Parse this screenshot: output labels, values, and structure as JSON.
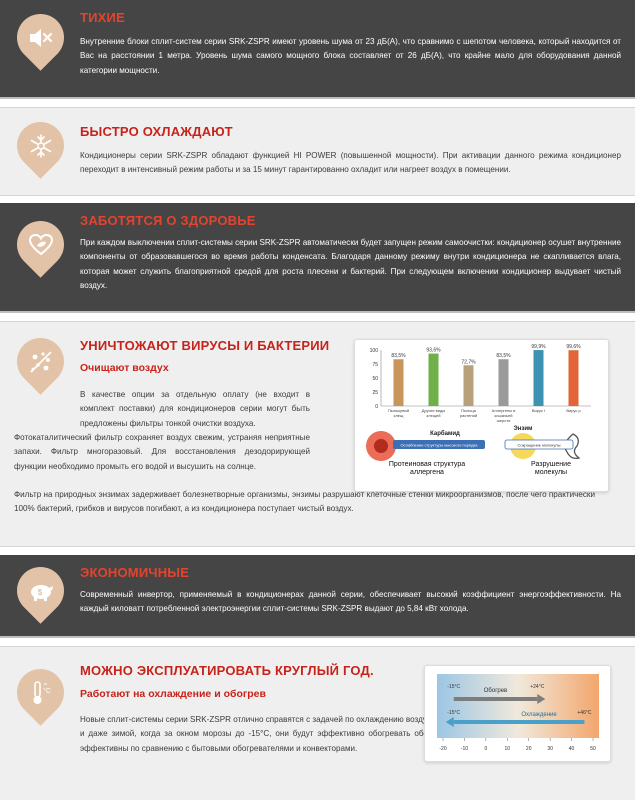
{
  "sections": [
    {
      "title": "ТИХИЕ",
      "icon": "mute-speaker-icon",
      "text": "Внутренние блоки сплит-систем серии SRK-ZSPR имеют уровень шума от 23 дБ(А), что сравнимо с шепотом человека, который находится от Вас на расстоянии 1 метра. Уровень шума самого мощного блока составляет от 26 дБ(А), что крайне мало для оборудования данной категории мощности."
    },
    {
      "title": "БЫСТРО ОХЛАЖДАЮТ",
      "icon": "snowflake-sun-icon",
      "text": "Кондиционеры серии SRK-ZSPR обладают функцией HI POWER (повышенной мощности). При активации данного режима кондиционер переходит в интенсивный режим работы и за 15 минут гарантированно охладит или нагреет воздух в помещении."
    },
    {
      "title": "ЗАБОТЯТСЯ О ЗДОРОВЬЕ",
      "icon": "heart-leaf-icon",
      "text": "При каждом выключении сплит-системы серии SRK-ZSPR автоматически будет запущен режим самоочистки: кондиционер осушет внутренние компоненты от образовавшегося во время работы конденсата. Благодаря данному режиму внутри кондиционера не скапливается влага, которая может служить благоприятной средой для роста плесени и бактерий. При следующем включении кондиционер выдувает чистый воздух."
    },
    {
      "title": "УНИЧТОЖАЮТ ВИРУСЫ И БАКТЕРИИ",
      "subtitle": "Очищают воздух",
      "icon": "virus-icon",
      "p1": "В качестве опции за отдельную оплату (не входит в комплект поставки) для кондиционеров серии могут быть предложены фильтры тонкой очистки воздуха.",
      "p2": "Фотокаталитический фильтр сохраняет воздух свежим, устраняя неприятные запахи. Фильтр многоразовый. Для восстановления дезодорирующей функции необходимо промыть его водой и высушить на солнце.",
      "p3": "Фильтр на природных энзимах задерживает болезнетворные организмы, энзимы разрушают клеточные стенки микроорганизмов, после чего практически 100% бактерий, грибков и вирусов погибают, а из кондиционера поступает чистый воздух."
    },
    {
      "title": "ЭКОНОМИЧНЫЕ",
      "icon": "piggy-bank-icon",
      "text": "Современный инвертор, применяемый в кондиционерах данной серии, обеспечивает высокий коэффициент энергоэффективности. На каждый киловатт потребленной электроэнергии сплит-системы SRK-ZSPR выдают до 5,84 кВт холода."
    },
    {
      "title": "МОЖНО ЭКСПЛУАТИРОВАТЬ КРУГЛЫЙ ГОД.",
      "subtitle": "Работают на охлаждение и обогрев",
      "icon": "thermometer-icon",
      "text": "Новые сплит-системы серии SRK-ZSPR отлично справятся с задачей по охлаждению воздуха в летние месяцы, а в осенне-зимний период и даже зимой, когда за окном морозы до -15°C, они будут эффективно обогревать обслуживаемое помещение. Эти приборы более эффективны по сравнению с бытовыми обогревателями и конвекторами."
    }
  ],
  "virus_figure": {
    "y_ticks": [
      "100",
      "75",
      "50",
      "25",
      "0"
    ],
    "bars": [
      {
        "label": "Пыльцевой клещ",
        "value": 83.5,
        "text": "83,5%",
        "color": "#c8955a"
      },
      {
        "label": "Другие виды клещей",
        "value": 93.6,
        "text": "93,6%",
        "color": "#6fb04a"
      },
      {
        "label": "Пыльца растений",
        "value": 72.7,
        "text": "72,7%",
        "color": "#b8a07a"
      },
      {
        "label": "Аллергены в кошачьей шерсти",
        "value": 83.5,
        "text": "83,5%",
        "color": "#9a9a9a"
      },
      {
        "label": "Вирус I",
        "value": 99.9,
        "text": "99,9%",
        "color": "#3b92b3"
      },
      {
        "label": "Вирус р",
        "value": 99.6,
        "text": "99,6%",
        "color": "#e2653a"
      }
    ],
    "carbamide_label": "Карбамид",
    "enzyme_label": "Энзим",
    "destroy_protein_label": "Ослабление структуры высокого порядка",
    "destroy_molecule_label": "Сокращение молекулы",
    "caption_left": "Протеиновая структура аллергена",
    "caption_right": "Разрушение молекулы"
  },
  "temp_figure": {
    "heating_label": "Обогрев",
    "cooling_label": "Охлаждение",
    "heat_range": [
      "-15°C",
      "+24°C"
    ],
    "cool_range": [
      "-15°C",
      "+46°C"
    ],
    "axis": [
      "-20",
      "-10",
      "0",
      "10",
      "20",
      "30",
      "40",
      "50"
    ]
  },
  "colors": {
    "accent": "#c8231b",
    "dark_bg": "#464545",
    "icon_bg": "#e3c3a7"
  }
}
